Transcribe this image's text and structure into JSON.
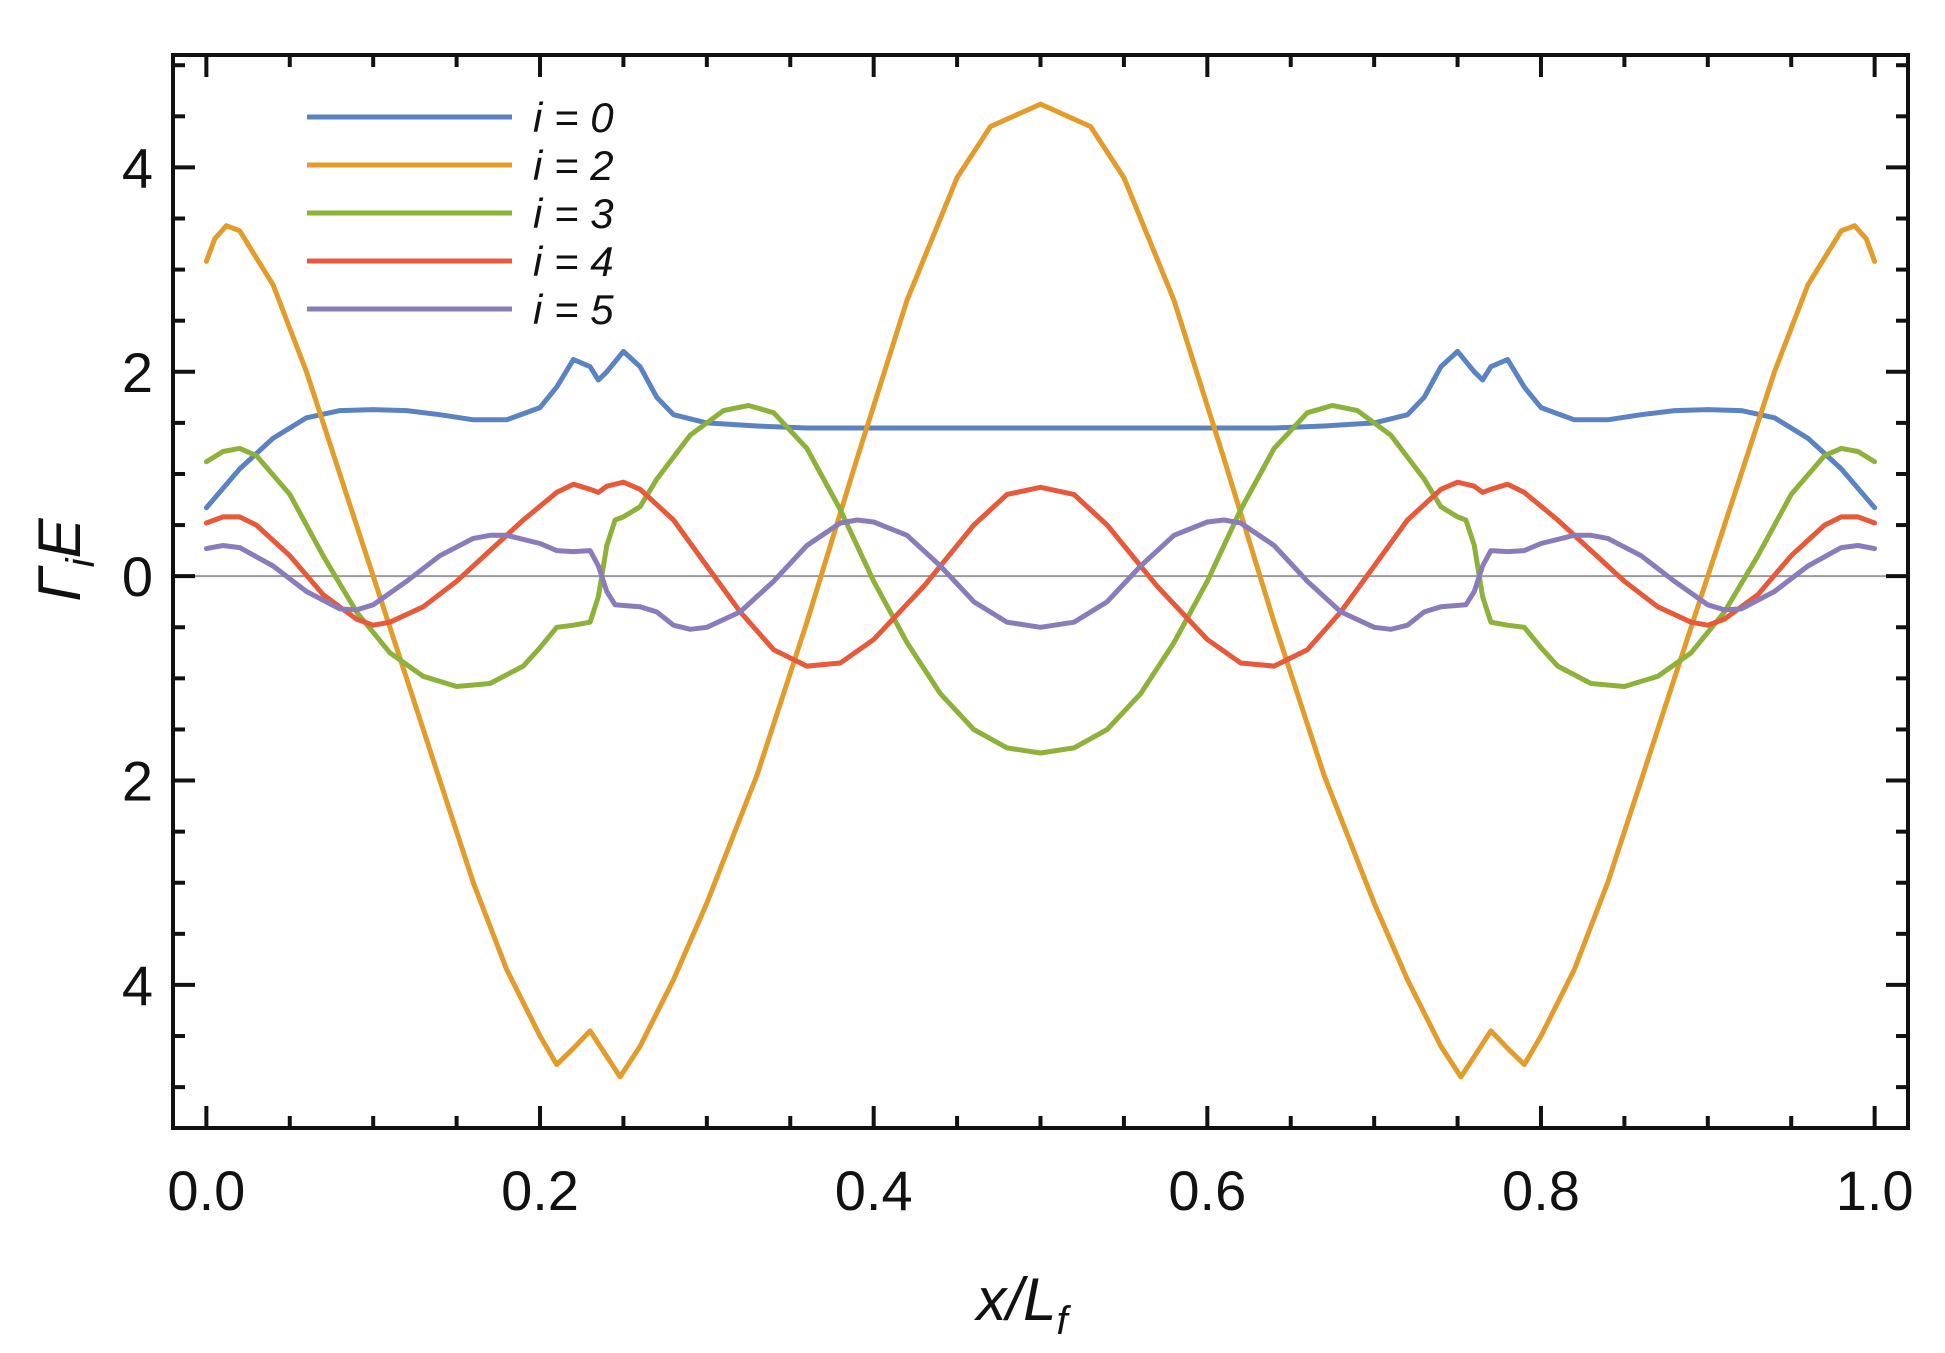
{
  "chart_data": {
    "type": "line",
    "xlabel_main": "x/L",
    "xlabel_sub": "f",
    "ylabel_main": "Γ",
    "ylabel_sub": "i",
    "ylabel_tail": "E",
    "xlim": [
      -0.02,
      1.02
    ],
    "ylim": [
      -5.4,
      5.1
    ],
    "x_ticks": [
      {
        "value": 0.0,
        "label": "0.0"
      },
      {
        "value": 0.2,
        "label": "0.2"
      },
      {
        "value": 0.4,
        "label": "0.4"
      },
      {
        "value": 0.6,
        "label": "0.6"
      },
      {
        "value": 0.8,
        "label": "0.8"
      },
      {
        "value": 1.0,
        "label": "1.0"
      }
    ],
    "y_ticks": [
      {
        "value": 4,
        "label": "4"
      },
      {
        "value": 2,
        "label": "2"
      },
      {
        "value": 0,
        "label": "0"
      },
      {
        "value": -2,
        "label": "2"
      },
      {
        "value": -4,
        "label": "4"
      }
    ],
    "zero_line": true,
    "grid": false,
    "legend_position": "top-left",
    "series": [
      {
        "name": "i = 0",
        "color": "#5b82c2",
        "points": [
          [
            0.0,
            0.67
          ],
          [
            0.02,
            1.05
          ],
          [
            0.04,
            1.35
          ],
          [
            0.06,
            1.55
          ],
          [
            0.08,
            1.62
          ],
          [
            0.1,
            1.63
          ],
          [
            0.12,
            1.62
          ],
          [
            0.14,
            1.58
          ],
          [
            0.16,
            1.53
          ],
          [
            0.18,
            1.53
          ],
          [
            0.2,
            1.65
          ],
          [
            0.21,
            1.85
          ],
          [
            0.22,
            2.12
          ],
          [
            0.23,
            2.05
          ],
          [
            0.235,
            1.92
          ],
          [
            0.24,
            2.0
          ],
          [
            0.25,
            2.2
          ],
          [
            0.26,
            2.05
          ],
          [
            0.27,
            1.75
          ],
          [
            0.28,
            1.58
          ],
          [
            0.3,
            1.5
          ],
          [
            0.33,
            1.47
          ],
          [
            0.36,
            1.45
          ],
          [
            0.4,
            1.45
          ],
          [
            0.45,
            1.45
          ],
          [
            0.5,
            1.45
          ],
          [
            0.55,
            1.45
          ],
          [
            0.6,
            1.45
          ],
          [
            0.64,
            1.45
          ],
          [
            0.67,
            1.47
          ],
          [
            0.7,
            1.5
          ],
          [
            0.72,
            1.58
          ],
          [
            0.73,
            1.75
          ],
          [
            0.74,
            2.05
          ],
          [
            0.75,
            2.2
          ],
          [
            0.76,
            2.0
          ],
          [
            0.765,
            1.92
          ],
          [
            0.77,
            2.05
          ],
          [
            0.78,
            2.12
          ],
          [
            0.79,
            1.85
          ],
          [
            0.8,
            1.65
          ],
          [
            0.82,
            1.53
          ],
          [
            0.84,
            1.53
          ],
          [
            0.86,
            1.58
          ],
          [
            0.88,
            1.62
          ],
          [
            0.9,
            1.63
          ],
          [
            0.92,
            1.62
          ],
          [
            0.94,
            1.55
          ],
          [
            0.96,
            1.35
          ],
          [
            0.98,
            1.05
          ],
          [
            1.0,
            0.67
          ]
        ]
      },
      {
        "name": "i = 2",
        "color": "#e39b2a",
        "points": [
          [
            0.0,
            3.08
          ],
          [
            0.005,
            3.3
          ],
          [
            0.012,
            3.43
          ],
          [
            0.02,
            3.38
          ],
          [
            0.04,
            2.85
          ],
          [
            0.06,
            2.0
          ],
          [
            0.08,
            1.0
          ],
          [
            0.1,
            0.0
          ],
          [
            0.12,
            -1.0
          ],
          [
            0.14,
            -2.0
          ],
          [
            0.16,
            -3.0
          ],
          [
            0.18,
            -3.85
          ],
          [
            0.2,
            -4.5
          ],
          [
            0.21,
            -4.78
          ],
          [
            0.22,
            -4.62
          ],
          [
            0.23,
            -4.45
          ],
          [
            0.24,
            -4.7
          ],
          [
            0.248,
            -4.9
          ],
          [
            0.26,
            -4.6
          ],
          [
            0.28,
            -3.95
          ],
          [
            0.3,
            -3.2
          ],
          [
            0.33,
            -1.95
          ],
          [
            0.36,
            -0.45
          ],
          [
            0.39,
            1.15
          ],
          [
            0.42,
            2.7
          ],
          [
            0.45,
            3.9
          ],
          [
            0.47,
            4.4
          ],
          [
            0.5,
            4.62
          ],
          [
            0.53,
            4.4
          ],
          [
            0.55,
            3.9
          ],
          [
            0.58,
            2.7
          ],
          [
            0.61,
            1.15
          ],
          [
            0.64,
            -0.45
          ],
          [
            0.67,
            -1.95
          ],
          [
            0.7,
            -3.2
          ],
          [
            0.72,
            -3.95
          ],
          [
            0.74,
            -4.6
          ],
          [
            0.752,
            -4.9
          ],
          [
            0.76,
            -4.7
          ],
          [
            0.77,
            -4.45
          ],
          [
            0.78,
            -4.62
          ],
          [
            0.79,
            -4.78
          ],
          [
            0.8,
            -4.5
          ],
          [
            0.82,
            -3.85
          ],
          [
            0.84,
            -3.0
          ],
          [
            0.86,
            -2.0
          ],
          [
            0.88,
            -1.0
          ],
          [
            0.9,
            0.0
          ],
          [
            0.92,
            1.0
          ],
          [
            0.94,
            2.0
          ],
          [
            0.96,
            2.85
          ],
          [
            0.98,
            3.38
          ],
          [
            0.988,
            3.43
          ],
          [
            0.995,
            3.3
          ],
          [
            1.0,
            3.08
          ]
        ]
      },
      {
        "name": "i = 3",
        "color": "#8cb23a",
        "points": [
          [
            0.0,
            1.12
          ],
          [
            0.01,
            1.22
          ],
          [
            0.02,
            1.25
          ],
          [
            0.03,
            1.18
          ],
          [
            0.05,
            0.8
          ],
          [
            0.07,
            0.2
          ],
          [
            0.09,
            -0.35
          ],
          [
            0.11,
            -0.75
          ],
          [
            0.13,
            -0.98
          ],
          [
            0.15,
            -1.08
          ],
          [
            0.17,
            -1.05
          ],
          [
            0.19,
            -0.88
          ],
          [
            0.2,
            -0.7
          ],
          [
            0.21,
            -0.5
          ],
          [
            0.22,
            -0.48
          ],
          [
            0.23,
            -0.45
          ],
          [
            0.235,
            -0.2
          ],
          [
            0.24,
            0.3
          ],
          [
            0.245,
            0.55
          ],
          [
            0.25,
            0.58
          ],
          [
            0.26,
            0.68
          ],
          [
            0.27,
            0.95
          ],
          [
            0.29,
            1.38
          ],
          [
            0.31,
            1.62
          ],
          [
            0.325,
            1.67
          ],
          [
            0.34,
            1.6
          ],
          [
            0.36,
            1.25
          ],
          [
            0.38,
            0.65
          ],
          [
            0.4,
            -0.05
          ],
          [
            0.42,
            -0.65
          ],
          [
            0.44,
            -1.15
          ],
          [
            0.46,
            -1.5
          ],
          [
            0.48,
            -1.68
          ],
          [
            0.5,
            -1.73
          ],
          [
            0.52,
            -1.68
          ],
          [
            0.54,
            -1.5
          ],
          [
            0.56,
            -1.15
          ],
          [
            0.58,
            -0.65
          ],
          [
            0.6,
            -0.05
          ],
          [
            0.62,
            0.65
          ],
          [
            0.64,
            1.25
          ],
          [
            0.66,
            1.6
          ],
          [
            0.675,
            1.67
          ],
          [
            0.69,
            1.62
          ],
          [
            0.71,
            1.38
          ],
          [
            0.73,
            0.95
          ],
          [
            0.74,
            0.68
          ],
          [
            0.75,
            0.58
          ],
          [
            0.755,
            0.55
          ],
          [
            0.76,
            0.3
          ],
          [
            0.765,
            -0.2
          ],
          [
            0.77,
            -0.45
          ],
          [
            0.78,
            -0.48
          ],
          [
            0.79,
            -0.5
          ],
          [
            0.8,
            -0.7
          ],
          [
            0.81,
            -0.88
          ],
          [
            0.83,
            -1.05
          ],
          [
            0.85,
            -1.08
          ],
          [
            0.87,
            -0.98
          ],
          [
            0.89,
            -0.75
          ],
          [
            0.91,
            -0.35
          ],
          [
            0.93,
            0.2
          ],
          [
            0.95,
            0.8
          ],
          [
            0.97,
            1.18
          ],
          [
            0.98,
            1.25
          ],
          [
            0.99,
            1.22
          ],
          [
            1.0,
            1.12
          ]
        ]
      },
      {
        "name": "i = 4",
        "color": "#e8593a",
        "points": [
          [
            0.0,
            0.52
          ],
          [
            0.01,
            0.58
          ],
          [
            0.02,
            0.58
          ],
          [
            0.03,
            0.5
          ],
          [
            0.05,
            0.2
          ],
          [
            0.07,
            -0.18
          ],
          [
            0.09,
            -0.42
          ],
          [
            0.1,
            -0.48
          ],
          [
            0.11,
            -0.45
          ],
          [
            0.13,
            -0.3
          ],
          [
            0.15,
            -0.05
          ],
          [
            0.17,
            0.25
          ],
          [
            0.19,
            0.55
          ],
          [
            0.21,
            0.82
          ],
          [
            0.22,
            0.9
          ],
          [
            0.23,
            0.85
          ],
          [
            0.235,
            0.82
          ],
          [
            0.24,
            0.88
          ],
          [
            0.25,
            0.92
          ],
          [
            0.26,
            0.85
          ],
          [
            0.28,
            0.55
          ],
          [
            0.3,
            0.1
          ],
          [
            0.32,
            -0.35
          ],
          [
            0.34,
            -0.72
          ],
          [
            0.36,
            -0.88
          ],
          [
            0.38,
            -0.85
          ],
          [
            0.4,
            -0.62
          ],
          [
            0.43,
            -0.1
          ],
          [
            0.46,
            0.5
          ],
          [
            0.48,
            0.8
          ],
          [
            0.5,
            0.87
          ],
          [
            0.52,
            0.8
          ],
          [
            0.54,
            0.5
          ],
          [
            0.57,
            -0.1
          ],
          [
            0.6,
            -0.62
          ],
          [
            0.62,
            -0.85
          ],
          [
            0.64,
            -0.88
          ],
          [
            0.66,
            -0.72
          ],
          [
            0.68,
            -0.35
          ],
          [
            0.7,
            0.1
          ],
          [
            0.72,
            0.55
          ],
          [
            0.74,
            0.85
          ],
          [
            0.75,
            0.92
          ],
          [
            0.76,
            0.88
          ],
          [
            0.765,
            0.82
          ],
          [
            0.77,
            0.85
          ],
          [
            0.78,
            0.9
          ],
          [
            0.79,
            0.82
          ],
          [
            0.81,
            0.55
          ],
          [
            0.83,
            0.25
          ],
          [
            0.85,
            -0.05
          ],
          [
            0.87,
            -0.3
          ],
          [
            0.89,
            -0.45
          ],
          [
            0.9,
            -0.48
          ],
          [
            0.91,
            -0.42
          ],
          [
            0.93,
            -0.18
          ],
          [
            0.95,
            0.2
          ],
          [
            0.97,
            0.5
          ],
          [
            0.98,
            0.58
          ],
          [
            0.99,
            0.58
          ],
          [
            1.0,
            0.52
          ]
        ]
      },
      {
        "name": "i = 5",
        "color": "#8a7cbb",
        "points": [
          [
            0.0,
            0.27
          ],
          [
            0.01,
            0.3
          ],
          [
            0.02,
            0.28
          ],
          [
            0.04,
            0.1
          ],
          [
            0.06,
            -0.15
          ],
          [
            0.08,
            -0.32
          ],
          [
            0.09,
            -0.33
          ],
          [
            0.1,
            -0.28
          ],
          [
            0.12,
            -0.05
          ],
          [
            0.14,
            0.2
          ],
          [
            0.16,
            0.37
          ],
          [
            0.17,
            0.4
          ],
          [
            0.18,
            0.4
          ],
          [
            0.2,
            0.32
          ],
          [
            0.21,
            0.25
          ],
          [
            0.22,
            0.24
          ],
          [
            0.23,
            0.25
          ],
          [
            0.235,
            0.1
          ],
          [
            0.24,
            -0.15
          ],
          [
            0.245,
            -0.28
          ],
          [
            0.26,
            -0.3
          ],
          [
            0.27,
            -0.35
          ],
          [
            0.28,
            -0.48
          ],
          [
            0.29,
            -0.52
          ],
          [
            0.3,
            -0.5
          ],
          [
            0.32,
            -0.35
          ],
          [
            0.34,
            -0.05
          ],
          [
            0.36,
            0.3
          ],
          [
            0.38,
            0.52
          ],
          [
            0.39,
            0.55
          ],
          [
            0.4,
            0.53
          ],
          [
            0.42,
            0.4
          ],
          [
            0.44,
            0.1
          ],
          [
            0.46,
            -0.25
          ],
          [
            0.48,
            -0.45
          ],
          [
            0.5,
            -0.5
          ],
          [
            0.52,
            -0.45
          ],
          [
            0.54,
            -0.25
          ],
          [
            0.56,
            0.1
          ],
          [
            0.58,
            0.4
          ],
          [
            0.6,
            0.53
          ],
          [
            0.61,
            0.55
          ],
          [
            0.62,
            0.52
          ],
          [
            0.64,
            0.3
          ],
          [
            0.66,
            -0.05
          ],
          [
            0.68,
            -0.35
          ],
          [
            0.7,
            -0.5
          ],
          [
            0.71,
            -0.52
          ],
          [
            0.72,
            -0.48
          ],
          [
            0.73,
            -0.35
          ],
          [
            0.74,
            -0.3
          ],
          [
            0.755,
            -0.28
          ],
          [
            0.76,
            -0.15
          ],
          [
            0.765,
            0.1
          ],
          [
            0.77,
            0.25
          ],
          [
            0.78,
            0.24
          ],
          [
            0.79,
            0.25
          ],
          [
            0.8,
            0.32
          ],
          [
            0.82,
            0.4
          ],
          [
            0.83,
            0.4
          ],
          [
            0.84,
            0.37
          ],
          [
            0.86,
            0.2
          ],
          [
            0.88,
            -0.05
          ],
          [
            0.9,
            -0.28
          ],
          [
            0.91,
            -0.33
          ],
          [
            0.92,
            -0.32
          ],
          [
            0.94,
            -0.15
          ],
          [
            0.96,
            0.1
          ],
          [
            0.98,
            0.28
          ],
          [
            0.99,
            0.3
          ],
          [
            1.0,
            0.27
          ]
        ]
      }
    ]
  }
}
